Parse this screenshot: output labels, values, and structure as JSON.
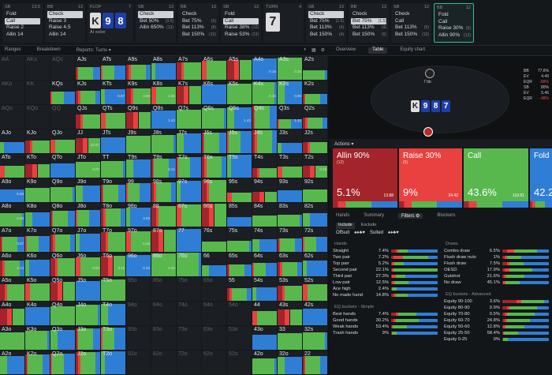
{
  "topbar": {
    "columns": [
      {
        "pos": "SB",
        "stack": "13.5",
        "actions": [
          {
            "label": "Fold"
          },
          {
            "label": "Call",
            "hi": true
          },
          {
            "label": "Raise 2"
          },
          {
            "label": "Allin 14"
          }
        ]
      },
      {
        "pos": "BB",
        "stack": "13",
        "actions": [
          {
            "label": "Check",
            "hi": true
          },
          {
            "label": "Raise 3"
          },
          {
            "label": "Raise 4.5"
          },
          {
            "label": "Allin 14"
          }
        ]
      },
      {
        "pos": "FLOP",
        "stack": "7",
        "cards": [
          "K",
          "9",
          "8"
        ],
        "link": "AI solve",
        "wide": true
      },
      {
        "pos": "SB",
        "stack": "13",
        "actions": [
          {
            "label": "Check",
            "hi": true
          },
          {
            "label": "Bet 50%",
            "n": "(3.5)"
          },
          {
            "label": "Allin 650%",
            "n": "(13)"
          }
        ]
      },
      {
        "pos": "BB",
        "stack": "13",
        "actions": [
          {
            "label": "Check"
          },
          {
            "label": "Bet 75%",
            "n": "(5)"
          },
          {
            "label": "Bet 113%",
            "n": "(8)"
          },
          {
            "label": "Bet 150%",
            "n": "(10)"
          }
        ]
      },
      {
        "pos": "SB",
        "stack": "13",
        "actions": [
          {
            "label": "Fold"
          },
          {
            "label": "Call",
            "hi": true
          },
          {
            "label": "Raise 38%",
            "n": "(12)"
          },
          {
            "label": "Raise 53%",
            "n": "(13)"
          }
        ]
      },
      {
        "pos": "TURN",
        "stack": "4",
        "card": "7"
      },
      {
        "pos": "SB",
        "stack": "13",
        "actions": [
          {
            "label": "Check",
            "hi": true
          },
          {
            "label": "Bet 75%",
            "n": "(1.5)"
          },
          {
            "label": "Bet 113%",
            "n": "(4)"
          },
          {
            "label": "Bet 150%",
            "n": "(4)"
          }
        ]
      },
      {
        "pos": "BB",
        "stack": "13",
        "actions": [
          {
            "label": "Check"
          },
          {
            "label": "Bet 75%",
            "n": "(1.5)",
            "hi": true
          },
          {
            "label": "Bet 113%",
            "n": "(4)"
          },
          {
            "label": "Bet 150%",
            "n": "(6)"
          }
        ]
      },
      {
        "pos": "SB",
        "stack": "12",
        "actions": [
          {
            "label": "Check"
          },
          {
            "label": "Call"
          },
          {
            "label": "Bet 113%",
            "n": "(5)"
          },
          {
            "label": "Bet 150%",
            "n": "(13)"
          }
        ]
      },
      {
        "pos": "BB",
        "stack": "12",
        "sel": true,
        "actions": [
          {
            "label": "Fold"
          },
          {
            "label": "Call"
          },
          {
            "label": "Raise 30%",
            "n": "(5)"
          },
          {
            "label": "Allin 90%",
            "n": "(12)"
          }
        ]
      }
    ]
  },
  "tabs": {
    "ranges": "Ranges",
    "breakdown": "Breakdown",
    "reports": "Reports: Turns ▾"
  },
  "grid": {
    "labels": [
      [
        "AA",
        "AKs",
        "AQs",
        "AJs",
        "ATs",
        "A9s",
        "A8s",
        "A7s",
        "A6s",
        "A5s",
        "A4s",
        "A3s",
        "A2s"
      ],
      [
        "AKo",
        "KK",
        "KQs",
        "KJs",
        "KTs",
        "K9s",
        "K8s",
        "K7s",
        "K6s",
        "K5s",
        "K4s",
        "K3s",
        "K2s"
      ],
      [
        "AQo",
        "KQo",
        "QQ",
        "QJs",
        "QTs",
        "Q9s",
        "Q8s",
        "Q7s",
        "Q6s",
        "Q5s",
        "Q4s",
        "Q3s",
        "Q2s"
      ],
      [
        "AJo",
        "KJo",
        "QJo",
        "JJ",
        "JTs",
        "J9s",
        "J8s",
        "J7s",
        "J6s",
        "J5s",
        "J4s",
        "J3s",
        "J2s"
      ],
      [
        "ATo",
        "KTo",
        "QTo",
        "JTo",
        "TT",
        "T9s",
        "T8s",
        "T7s",
        "T6s",
        "T5s",
        "T4s",
        "T3s",
        "T2s"
      ],
      [
        "A9o",
        "K9o",
        "Q9o",
        "J9o",
        "T9o",
        "99",
        "98s",
        "97s",
        "96s",
        "95s",
        "94s",
        "93s",
        "92s"
      ],
      [
        "A8o",
        "K8o",
        "Q8o",
        "J8o",
        "T8o",
        "98o",
        "88",
        "87s",
        "86s",
        "85s",
        "84s",
        "83s",
        "82s"
      ],
      [
        "A7o",
        "K7o",
        "Q7o",
        "J7o",
        "T7o",
        "97o",
        "87o",
        "77",
        "76s",
        "75s",
        "74s",
        "73s",
        "72s"
      ],
      [
        "A6o",
        "K6o",
        "Q6o",
        "J6o",
        "T6o",
        "96o",
        "86o",
        "76o",
        "66",
        "65s",
        "64s",
        "63s",
        "62s"
      ],
      [
        "A5o",
        "K5o",
        "Q5o",
        "J5o",
        "T5o",
        "95o",
        "85o",
        "75o",
        "65o",
        "55",
        "54s",
        "53s",
        "52s"
      ],
      [
        "A4o",
        "K4o",
        "Q4o",
        "J4o",
        "T4o",
        "94o",
        "84o",
        "74o",
        "64o",
        "54o",
        "44",
        "43s",
        "42s"
      ],
      [
        "A3o",
        "K3o",
        "Q3o",
        "J3o",
        "T3o",
        "93o",
        "83o",
        "73o",
        "63o",
        "53o",
        "43o",
        "33",
        "32s"
      ],
      [
        "A2o",
        "K2o",
        "Q2o",
        "J2o",
        "T2o",
        "92o",
        "82o",
        "72o",
        "62o",
        "52o",
        "42o",
        "32o",
        "22"
      ]
    ],
    "values": {
      "1_4": "5.67",
      "1_5": "4.84",
      "1_6": "1.81",
      "2_6": "1.42",
      "2_9": "1.42",
      "2_11": "1.42",
      "4_6": "9.21",
      "4_12": "0.15",
      "5_0": "5.68",
      "6_0": "4.48",
      "3_3": "10.07",
      "4_3": "8.07",
      "7_0": "3.57",
      "8_0": "2.13",
      "6_5": "3.93",
      "7_5": "5.36",
      "0_10": "0.15",
      "0_11": "0.16",
      "1_10": "0.15",
      "1_11": "0.96",
      "8_3": "5.55",
      "8_4": "0.11",
      "8_5": "0.15",
      "8_6": "0.04"
    }
  },
  "table": {
    "stack_top": "7 bb",
    "cards": [
      "K",
      "9",
      "8",
      "7"
    ],
    "stats": [
      {
        "k": "BB",
        "v": "77.6%"
      },
      {
        "k": "EV",
        "v": "4.49"
      },
      {
        "k": "EQR",
        "v": "-88%"
      },
      {
        "k": "SB",
        "v": "80%"
      },
      {
        "k": "EV",
        "v": "5.46"
      },
      {
        "k": "EQR",
        "v": "-48%"
      }
    ],
    "tabs": [
      "Overview",
      "Table",
      "Equity chart"
    ]
  },
  "actions_label": "Actions ▾",
  "strategy": [
    {
      "name": "Allin 90%",
      "count": "(12)",
      "pct": "5.1%",
      "combos": "13.88",
      "color": "#a3242a"
    },
    {
      "name": "Raise 30%",
      "count": "(5)",
      "pct": "9%",
      "combos": "24.42",
      "color": "#e9413f"
    },
    {
      "name": "Call",
      "count": "",
      "pct": "43.6%",
      "combos": "119.51",
      "color": "#58b84e"
    },
    {
      "name": "Fold",
      "count": "",
      "pct": "42.2",
      "combos": "",
      "color": "#2f7ed6"
    }
  ],
  "filtabs": [
    "Hands",
    "Summary",
    "Filters ⚙",
    "Blockers"
  ],
  "incl": [
    "Include",
    "Exclude"
  ],
  "suits": [
    "Offsuit",
    "♠♦♣♥",
    "Suited",
    "♠♦♣♥"
  ],
  "hands": {
    "title": "Hands",
    "rows": [
      {
        "l": "Straight",
        "p": "7.4%",
        "b": [
          0.1,
          0.05,
          0.2,
          0.65
        ]
      },
      {
        "l": "Two pair",
        "p": "7.2%",
        "b": [
          0.05,
          0.2,
          0.55,
          0.2
        ]
      },
      {
        "l": "Top pair",
        "p": "5.2%",
        "b": [
          0.02,
          0.05,
          0.2,
          0.73
        ]
      },
      {
        "l": "Second pair",
        "p": "22.1%",
        "b": [
          0.02,
          0.03,
          0.95,
          0
        ]
      },
      {
        "l": "Third pair",
        "p": "27.3%",
        "b": [
          0.02,
          0.08,
          0.2,
          0.7
        ]
      },
      {
        "l": "Low pair",
        "p": "12.5%",
        "b": [
          0.02,
          0.05,
          0.3,
          0.63
        ]
      },
      {
        "l": "Ace high",
        "p": "2.4%",
        "b": [
          0.02,
          0,
          0.1,
          0.88
        ]
      },
      {
        "l": "No made hand",
        "p": "14.8%",
        "b": [
          0.05,
          0.05,
          0.25,
          0.65
        ]
      }
    ]
  },
  "eqs": {
    "title": "EQ buckets - Simple",
    "rows": [
      {
        "l": "Best hands",
        "p": "7.4%",
        "b": [
          0.1,
          0.05,
          0.4,
          0.45
        ]
      },
      {
        "l": "Good hands",
        "p": "30.2%",
        "b": [
          0.05,
          0.05,
          0.5,
          0.4
        ]
      },
      {
        "l": "Weak hands",
        "p": "53.4%",
        "b": [
          0.02,
          0.02,
          0.3,
          0.66
        ]
      },
      {
        "l": "Trash hands",
        "p": "9%",
        "b": [
          0.01,
          0.01,
          0.1,
          0.88
        ]
      }
    ]
  },
  "draws": {
    "title": "Draws",
    "rows": [
      {
        "l": "Combo draw",
        "p": "6.5%",
        "b": [
          0.1,
          0.15,
          0.5,
          0.25
        ]
      },
      {
        "l": "Flush draw nuts",
        "p": "1%",
        "b": [
          0.05,
          0.05,
          0.3,
          0.6
        ]
      },
      {
        "l": "Flush draw",
        "p": "7.5%",
        "b": [
          0.1,
          0.05,
          0.3,
          0.55
        ]
      },
      {
        "l": "OESD",
        "p": "17.9%",
        "b": [
          0.05,
          0.1,
          0.5,
          0.35
        ]
      },
      {
        "l": "Gutshot",
        "p": "21.6%",
        "b": [
          0.03,
          0.05,
          0.4,
          0.52
        ]
      },
      {
        "l": "No draw",
        "p": "45.1%",
        "b": [
          0.02,
          0.05,
          0.3,
          0.63
        ]
      }
    ]
  },
  "eqa": {
    "title": "EQ buckets - Advanced",
    "rows": [
      {
        "l": "Equity 90-100",
        "p": "3.6%",
        "b": [
          0.3,
          0.1,
          0.5,
          0.1
        ]
      },
      {
        "l": "Equity 80-90",
        "p": "0.9%",
        "b": [
          0.1,
          0.05,
          0.6,
          0.25
        ]
      },
      {
        "l": "Equity 70-80",
        "p": "0.5%",
        "b": [
          0.05,
          0.05,
          0.6,
          0.3
        ]
      },
      {
        "l": "Equity 60-70",
        "p": "24.8%",
        "b": [
          0.05,
          0.05,
          0.5,
          0.4
        ]
      },
      {
        "l": "Equity 50-60",
        "p": "12.8%",
        "b": [
          0.02,
          0.05,
          0.4,
          0.53
        ]
      },
      {
        "l": "Equity 25-50",
        "p": "58.4%",
        "b": [
          0.02,
          0.02,
          0.3,
          0.66
        ]
      },
      {
        "l": "Equity 0-25",
        "p": "9%",
        "b": [
          0.01,
          0.01,
          0.1,
          0.88
        ]
      }
    ]
  },
  "colors": {
    "allin": "#a3242a",
    "raise": "#e9413f",
    "call": "#58b84e",
    "fold": "#2f7ed6"
  }
}
